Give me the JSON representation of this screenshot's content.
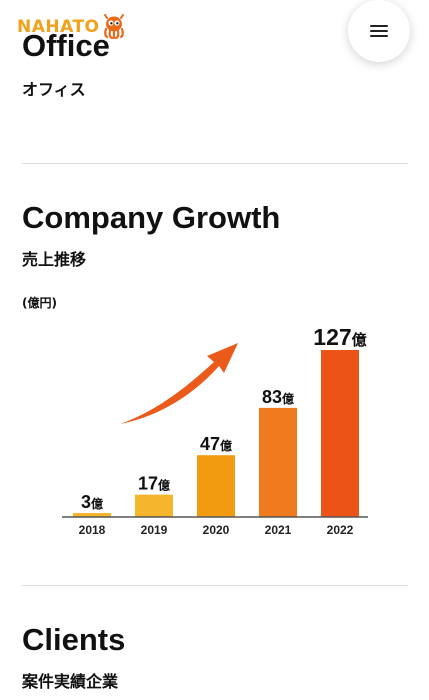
{
  "header": {
    "logo_text": "NAHATO",
    "logo_icon": "octopus-mascot-icon",
    "menu_icon": "hamburger-menu-icon"
  },
  "sections": {
    "office": {
      "title": "Office",
      "subtitle": "オフィス"
    },
    "growth": {
      "title": "Company Growth",
      "subtitle": "売上推移",
      "unit_label": "(億円)"
    },
    "clients": {
      "title": "Clients",
      "subtitle": "案件実績企業"
    }
  },
  "colors": {
    "logo": "#f0a21c",
    "arrow": "#ea5a1a",
    "bars": [
      "#f5b52c",
      "#f5b52c",
      "#f29a10",
      "#f07a1e",
      "#eb5416"
    ]
  },
  "chart_data": {
    "type": "bar",
    "categories": [
      "2018",
      "2019",
      "2020",
      "2021",
      "2022"
    ],
    "values": [
      3,
      17,
      47,
      83,
      127
    ],
    "value_suffix": "億",
    "ylabel": "(億円)",
    "ylim": [
      0,
      127
    ],
    "grid": false,
    "annotation": "upward-trend-arrow"
  }
}
